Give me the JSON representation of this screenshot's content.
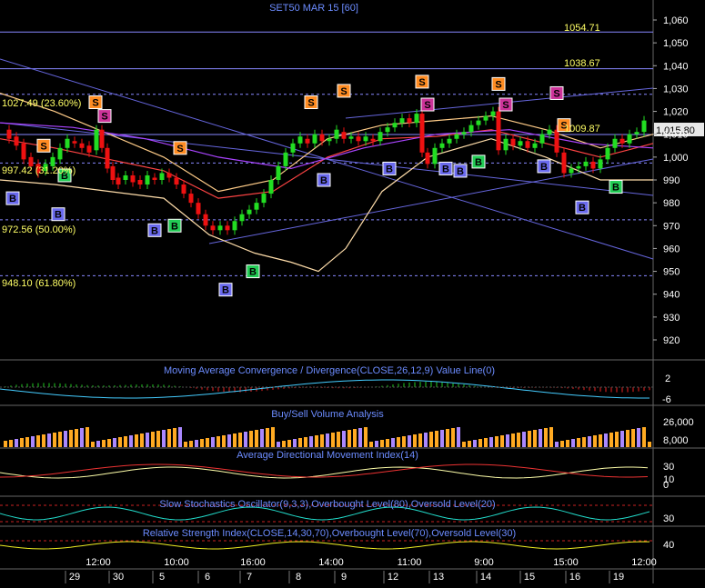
{
  "title": "SET50 MAR 15   [60]",
  "current_price": "1,015.80",
  "price_axis": [
    "1,060",
    "1,050",
    "1,040",
    "1,030",
    "1,020",
    "1,010",
    "1,000",
    "990",
    "980",
    "970",
    "960",
    "950",
    "940",
    "930",
    "920"
  ],
  "level_labels": {
    "l1": "1054.71",
    "l2": "1038.67",
    "l3": "1009.87",
    "f1": "1027.49 (23.60%)",
    "f2": "997.42 (31.20%)",
    "f3": "972.56 (50.00%)",
    "f4": "948.10 (61.80%)"
  },
  "panels": {
    "macd": {
      "title": "Moving Average Convergence / Divergence(CLOSE,26,12,9) Value Line(0)",
      "axis": [
        "2",
        "-6"
      ]
    },
    "volume": {
      "title": "Buy/Sell Volume Analysis",
      "axis": [
        "26,000",
        "8,000"
      ]
    },
    "adx": {
      "title": "Average Directional Movement Index(14)",
      "axis": [
        "30",
        "10",
        "0"
      ]
    },
    "stoch": {
      "title": "Slow Stochastics Oscillator(9,3,3),Overbought Level(80),Oversold Level(20)",
      "axis": [
        "30"
      ]
    },
    "rsi": {
      "title": "Relative Strength Index(CLOSE,14,30,70),Overbought Level(70),Oversold Level(30)",
      "axis": [
        "40"
      ]
    }
  },
  "time_labels": [
    "12:00",
    "10:00",
    "16:00",
    "14:00",
    "11:00",
    "9:00",
    "15:00",
    "12:00"
  ],
  "date_labels": [
    "29",
    "30",
    "5",
    "6",
    "7",
    "8",
    "9",
    "12",
    "13",
    "14",
    "15",
    "16",
    "19"
  ],
  "signal_labels": {
    "buy": "B",
    "sell": "S"
  },
  "colors": {
    "background": "#000000",
    "up": "#22dd22",
    "down": "#ee1111",
    "grid": "#333333",
    "title": "#6c8cff",
    "axis_text": "#ffffff",
    "level": "#ffff66",
    "buy": "#6a6aee",
    "buy_green": "#22cc55",
    "sell": "#ff8c22",
    "sell_magenta": "#cc3399"
  }
}
